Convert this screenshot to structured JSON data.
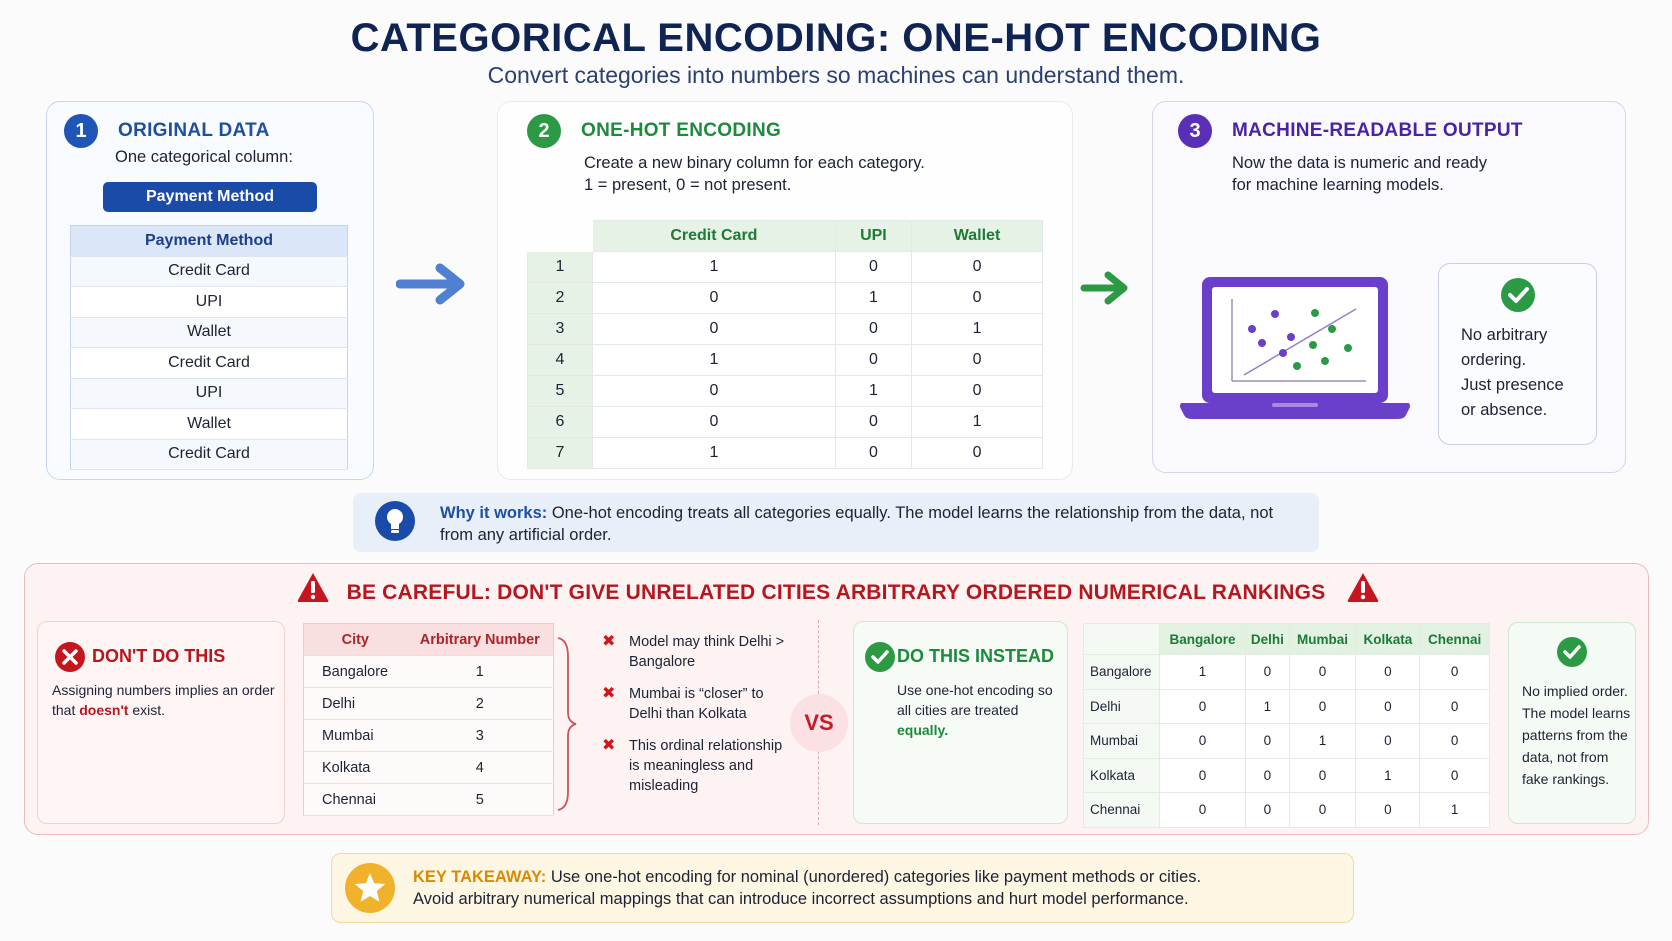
{
  "header": {
    "title": "CATEGORICAL ENCODING: ONE-HOT ENCODING",
    "subtitle": "Convert categories into numbers so machines can understand them."
  },
  "step1": {
    "number": "1",
    "title": "ORIGINAL DATA",
    "description": "One categorical column:",
    "badge": "Payment Method",
    "table_header": "Payment Method",
    "rows": [
      "Credit Card",
      "UPI",
      "Wallet",
      "Credit Card",
      "UPI",
      "Wallet",
      "Credit Card"
    ]
  },
  "step2": {
    "number": "2",
    "title": "ONE-HOT ENCODING",
    "line1": "Create a new binary column for each category.",
    "line2": "1 = present, 0 = not present.",
    "columns": [
      "Credit Card",
      "UPI",
      "Wallet"
    ],
    "rows": [
      {
        "idx": "1",
        "values": [
          "1",
          "0",
          "0"
        ]
      },
      {
        "idx": "2",
        "values": [
          "0",
          "1",
          "0"
        ]
      },
      {
        "idx": "3",
        "values": [
          "0",
          "0",
          "1"
        ]
      },
      {
        "idx": "4",
        "values": [
          "1",
          "0",
          "0"
        ]
      },
      {
        "idx": "5",
        "values": [
          "0",
          "1",
          "0"
        ]
      },
      {
        "idx": "6",
        "values": [
          "0",
          "0",
          "1"
        ]
      },
      {
        "idx": "7",
        "values": [
          "1",
          "0",
          "0"
        ]
      }
    ]
  },
  "step3": {
    "number": "3",
    "title": "MACHINE-READABLE OUTPUT",
    "line1": "Now the data is numeric and ready",
    "line2": "for machine learning models.",
    "card": [
      "No arbitrary",
      "ordering.",
      "Just presence",
      "or absence."
    ]
  },
  "why": {
    "label": "Why it works:",
    "text": " One-hot encoding treats all categories equally. The model learns the relationship from the data, not from any artificial order."
  },
  "careful": {
    "title": "BE CAREFUL: DON'T GIVE UNRELATED CITIES ARBITRARY ORDERED NUMERICAL RANKINGS",
    "dont": {
      "title": "DON'T DO THIS",
      "text_before": "Assigning numbers implies an order that ",
      "text_red": "doesn't",
      "text_after": " exist."
    },
    "ranking_table": {
      "headers": [
        "City",
        "Arbitrary Number"
      ],
      "rows": [
        {
          "city": "Bangalore",
          "num": "1"
        },
        {
          "city": "Delhi",
          "num": "2"
        },
        {
          "city": "Mumbai",
          "num": "3"
        },
        {
          "city": "Kolkata",
          "num": "4"
        },
        {
          "city": "Chennai",
          "num": "5"
        }
      ]
    },
    "bullets": [
      "Model may think Delhi > Bangalore",
      "Mumbai is “closer” to Delhi than Kolkata",
      "This ordinal relationship is meaningless and misleading"
    ],
    "vs": "VS",
    "instead": {
      "title": "DO THIS INSTEAD",
      "text_before": "Use one-hot encoding so all cities are treated ",
      "text_green": "equally."
    },
    "onehot_table": {
      "columns": [
        "Bangalore",
        "Delhi",
        "Mumbai",
        "Kolkata",
        "Chennai"
      ],
      "rows": [
        {
          "city": "Bangalore",
          "values": [
            "1",
            "0",
            "0",
            "0",
            "0"
          ]
        },
        {
          "city": "Delhi",
          "values": [
            "0",
            "1",
            "0",
            "0",
            "0"
          ]
        },
        {
          "city": "Mumbai",
          "values": [
            "0",
            "0",
            "1",
            "0",
            "0"
          ]
        },
        {
          "city": "Kolkata",
          "values": [
            "0",
            "0",
            "0",
            "1",
            "0"
          ]
        },
        {
          "city": "Chennai",
          "values": [
            "0",
            "0",
            "0",
            "0",
            "1"
          ]
        }
      ]
    },
    "implied": "No implied order. The model learns patterns from the data, not from fake rankings."
  },
  "takeaway": {
    "label": "KEY TAKEAWAY:",
    "line1": " Use one-hot encoding for nominal (unordered) categories like payment methods or cities.",
    "line2": "Avoid arbitrary numerical mappings that can introduce incorrect assumptions and hurt model performance."
  },
  "colors": {
    "navy": "#0f2453",
    "blue": "#1f55b6",
    "green": "#2c9944",
    "purple": "#5a2fb8",
    "red": "#c0141c",
    "gold": "#f0b22a"
  },
  "icons": [
    "arrow-right-icon",
    "laptop-scatter-icon",
    "check-circle-icon",
    "lightbulb-icon",
    "warning-icon",
    "x-circle-icon",
    "x-mark-icon",
    "star-icon"
  ]
}
